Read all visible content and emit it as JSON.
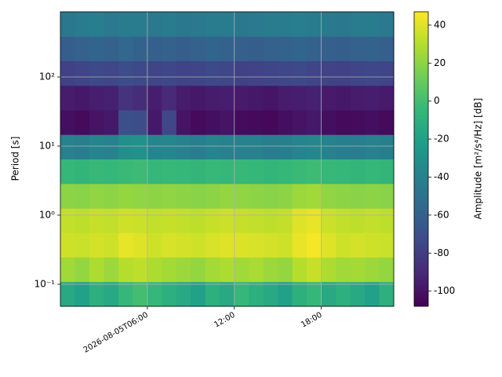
{
  "chart_data": {
    "type": "heatmap",
    "y_label": "Period [s]",
    "colorbar_label": "Amplitude [m²/s⁴/Hz] [dB]",
    "x": [
      "2026-08-05T00:00",
      "2026-08-05T01:00",
      "2026-08-05T02:00",
      "2026-08-05T03:00",
      "2026-08-05T04:00",
      "2026-08-05T05:00",
      "2026-08-05T06:00",
      "2026-08-05T07:00",
      "2026-08-05T08:00",
      "2026-08-05T09:00",
      "2026-08-05T10:00",
      "2026-08-05T11:00",
      "2026-08-05T12:00",
      "2026-08-05T13:00",
      "2026-08-05T14:00",
      "2026-08-05T15:00",
      "2026-08-05T16:00",
      "2026-08-05T17:00",
      "2026-08-05T18:00",
      "2026-08-05T19:00",
      "2026-08-05T20:00",
      "2026-08-05T21:00",
      "2026-08-05T22:00",
      "2026-08-05T23:00"
    ],
    "period_bins": [
      0.048,
      0.109,
      0.247,
      0.558,
      1.26,
      2.86,
      6.49,
      14.7,
      33.3,
      75.3,
      171,
      387,
      877
    ],
    "z": [
      [
        -15,
        -20,
        -10,
        -15,
        -5,
        0,
        -5,
        -10,
        -15,
        -20,
        -10,
        -15,
        -5,
        -10,
        -15,
        -20,
        -10,
        -5,
        -15,
        -10,
        -15,
        -20,
        -10
      ],
      [
        25,
        22,
        28,
        24,
        30,
        32,
        28,
        26,
        24,
        22,
        26,
        28,
        25,
        27,
        24,
        22,
        30,
        34,
        28,
        25,
        26,
        24,
        22
      ],
      [
        36,
        35,
        37,
        36,
        42,
        40,
        36,
        38,
        37,
        36,
        38,
        40,
        39,
        38,
        37,
        36,
        42,
        45,
        40,
        36,
        37,
        36,
        35
      ],
      [
        33,
        32,
        34,
        33,
        36,
        35,
        33,
        34,
        33,
        32,
        34,
        35,
        34,
        33,
        32,
        33,
        40,
        42,
        35,
        33,
        32,
        33,
        32
      ],
      [
        20,
        19,
        21,
        20,
        22,
        21,
        20,
        21,
        20,
        19,
        20,
        22,
        21,
        20,
        19,
        20,
        24,
        25,
        21,
        20,
        19,
        20,
        19
      ],
      [
        -5,
        -6,
        -4,
        -5,
        -3,
        -2,
        -5,
        -4,
        -5,
        -6,
        -4,
        -5,
        -4,
        -5,
        -6,
        -5,
        -3,
        -2,
        -4,
        -5,
        -6,
        -5,
        -6
      ],
      [
        -40,
        -42,
        -38,
        -40,
        -32,
        -30,
        -38,
        -36,
        -40,
        -42,
        -38,
        -40,
        -39,
        -40,
        -42,
        -41,
        -38,
        -36,
        -40,
        -41,
        -42,
        -40,
        -41
      ],
      [
        -102,
        -104,
        -100,
        -98,
        -70,
        -72,
        -98,
        -75,
        -100,
        -104,
        -102,
        -100,
        -103,
        -104,
        -105,
        -102,
        -100,
        -98,
        -102,
        -104,
        -103,
        -102,
        -104
      ],
      [
        -96,
        -98,
        -95,
        -94,
        -85,
        -88,
        -95,
        -90,
        -96,
        -98,
        -96,
        -95,
        -97,
        -98,
        -99,
        -96,
        -95,
        -94,
        -97,
        -98,
        -96,
        -95,
        -97
      ],
      [
        -78,
        -76,
        -74,
        -75,
        -72,
        -74,
        -76,
        -75,
        -77,
        -76,
        -74,
        -75,
        -78,
        -77,
        -76,
        -75,
        -74,
        -76,
        -77,
        -78,
        -76,
        -75,
        -76
      ],
      [
        -62,
        -60,
        -58,
        -60,
        -57,
        -59,
        -61,
        -60,
        -62,
        -60,
        -58,
        -60,
        -61,
        -62,
        -60,
        -59,
        -58,
        -60,
        -61,
        -62,
        -60,
        -59,
        -61
      ],
      [
        -46,
        -44,
        -42,
        -45,
        -43,
        -44,
        -45,
        -44,
        -46,
        -45,
        -43,
        -44,
        -46,
        -45,
        -44,
        -43,
        -42,
        -44,
        -45,
        -46,
        -44,
        -43,
        -45
      ]
    ],
    "xlim": [
      "2026-08-05T00:00",
      "2026-08-05T23:00"
    ],
    "xticks": [
      {
        "value": "2026-08-05T06:00",
        "label": "2026-08-05T06:00"
      },
      {
        "value": "2026-08-05T12:00",
        "label": "12:00"
      },
      {
        "value": "2026-08-05T18:00",
        "label": "18:00"
      }
    ],
    "ylim": [
      0.048,
      877
    ],
    "yticks": [
      {
        "value": 0.1,
        "label": "10⁻¹"
      },
      {
        "value": 1,
        "label": "10⁰"
      },
      {
        "value": 10,
        "label": "10¹"
      },
      {
        "value": 100,
        "label": "10²"
      }
    ],
    "y_log": true,
    "grid": true,
    "colormap": "viridis",
    "clim": [
      -108,
      47
    ],
    "cticks": [
      -100,
      -80,
      -60,
      -40,
      -20,
      0,
      20,
      40
    ]
  }
}
